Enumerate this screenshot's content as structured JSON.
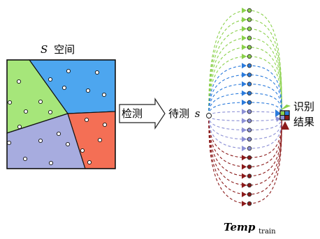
{
  "space": {
    "title_var": "S",
    "title_text": "空间",
    "colors": {
      "top_right": "#4da6ef",
      "left": "#a6e67a",
      "bottom_left": "#a7acdf",
      "bottom_right": "#f46f55"
    }
  },
  "detect": {
    "box_label": "检测"
  },
  "sample": {
    "label": "待测",
    "var": "s"
  },
  "result": {
    "line1": "识别",
    "line2": "结果"
  },
  "template": {
    "label_main": "Temp",
    "label_sub": "train"
  },
  "classes": [
    {
      "name": "green",
      "color": "#8bd14c",
      "count": 6
    },
    {
      "name": "blue",
      "color": "#2b7bdc",
      "count": 5
    },
    {
      "name": "purple",
      "color": "#8c90d6",
      "count": 5
    },
    {
      "name": "red",
      "color": "#8b1a1a",
      "count": 6
    }
  ]
}
